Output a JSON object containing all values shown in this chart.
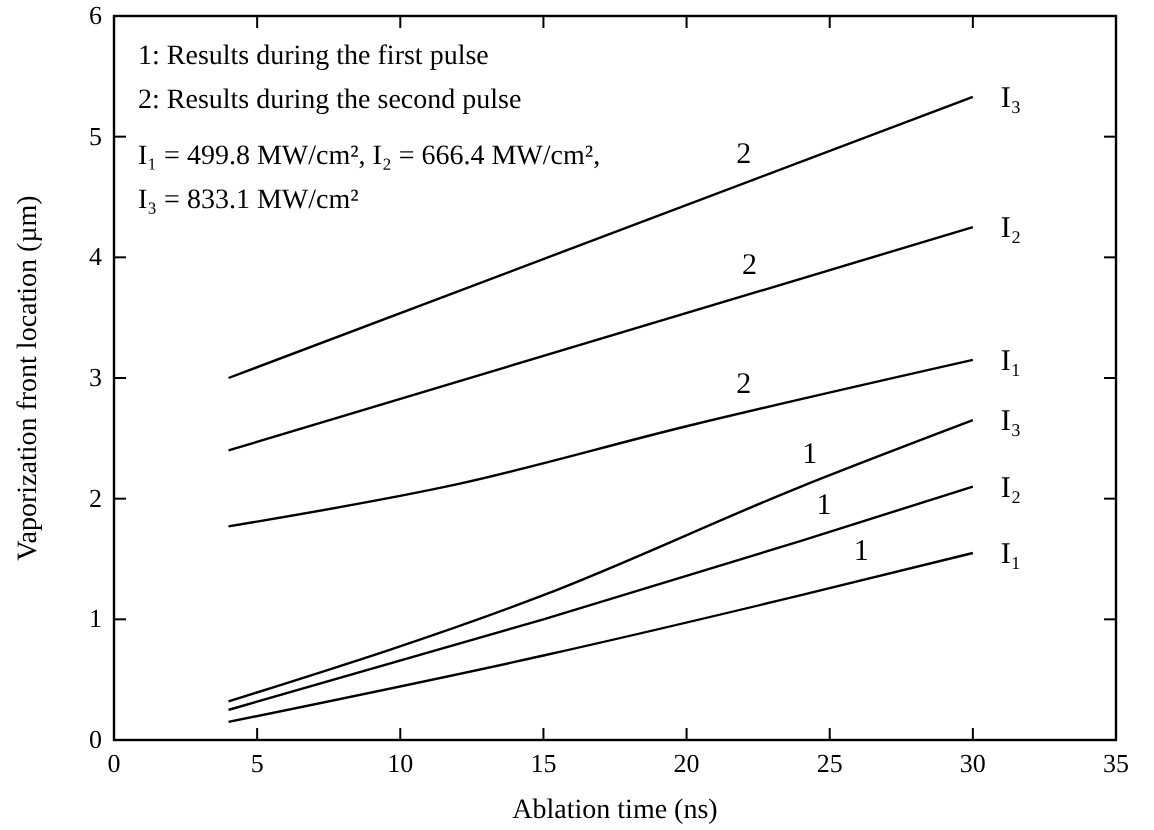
{
  "chart_data": {
    "type": "line",
    "xlabel": "Ablation time (ns)",
    "ylabel": "Vaporization front location (µm)",
    "xlim": [
      0,
      35
    ],
    "xticks": [
      0,
      5,
      10,
      15,
      20,
      25,
      30,
      35
    ],
    "ylim": [
      0,
      6
    ],
    "yticks": [
      0,
      1,
      2,
      3,
      4,
      5,
      6
    ],
    "grid": false,
    "marker": "none",
    "line_style": "solid",
    "series": [
      {
        "name": "I₃",
        "color": "#000000",
        "x": [
          4,
          30
        ],
        "values": [
          3.0,
          5.33
        ]
      },
      {
        "name": "I₂",
        "color": "#000000",
        "x": [
          4,
          30
        ],
        "values": [
          2.4,
          4.25
        ]
      },
      {
        "name": "I₁",
        "color": "#000000",
        "x": [
          4,
          12,
          20,
          30
        ],
        "values": [
          1.77,
          2.12,
          2.6,
          3.15
        ]
      },
      {
        "name": "I₃",
        "color": "#000000",
        "x": [
          4,
          15,
          24,
          30
        ],
        "values": [
          0.32,
          1.2,
          2.1,
          2.65
        ]
      },
      {
        "name": "I₂",
        "color": "#000000",
        "x": [
          4,
          15,
          24,
          30
        ],
        "values": [
          0.25,
          1.0,
          1.65,
          2.1
        ]
      },
      {
        "name": "I₁",
        "color": "#000000",
        "x": [
          4,
          15,
          24,
          30
        ],
        "values": [
          0.15,
          0.7,
          1.2,
          1.55
        ]
      }
    ],
    "annotations": [
      "1: Results during the first pulse",
      "2: Results during the second pulse",
      "I₁ = 499.8 MW/cm², I₂ = 666.4 MW/cm²,",
      "I₃ = 833.1 MW/cm²",
      "2",
      "2",
      "2",
      "1",
      "1",
      "1"
    ]
  }
}
